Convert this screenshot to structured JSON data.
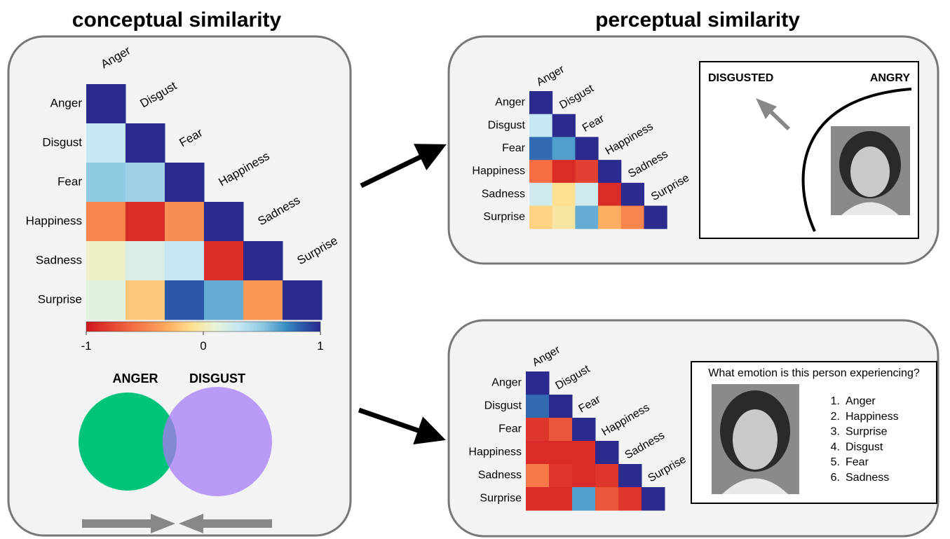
{
  "left_panel": {
    "title": "conceptual similarity",
    "matrix": {
      "labels": [
        "Anger",
        "Disgust",
        "Fear",
        "Happiness",
        "Sadness",
        "Surprise"
      ],
      "values": [
        [
          1
        ],
        [
          0.3,
          1
        ],
        [
          0.5,
          0.45,
          1
        ],
        [
          -0.5,
          -0.9,
          -0.45,
          1
        ],
        [
          0.05,
          0.2,
          0.3,
          -0.9,
          1
        ],
        [
          0.15,
          -0.2,
          0.85,
          0.6,
          -0.4,
          1
        ]
      ]
    },
    "colorbar": {
      "lim": [
        -1,
        1
      ],
      "ticks": [
        -1,
        0,
        1
      ]
    },
    "venn": {
      "labels": [
        "ANGER",
        "DISGUST"
      ]
    }
  },
  "right_title": "perceptual similarity",
  "top_panel": {
    "matrix": {
      "labels": [
        "Anger",
        "Disgust",
        "Fear",
        "Happiness",
        "Sadness",
        "Surprise"
      ],
      "values": [
        [
          1
        ],
        [
          0.3,
          1
        ],
        [
          0.8,
          0.65,
          1
        ],
        [
          -0.6,
          -0.9,
          -0.8,
          1
        ],
        [
          0.25,
          -0.1,
          0.25,
          -0.9,
          1
        ],
        [
          -0.15,
          -0.05,
          0.6,
          -0.3,
          -0.5,
          1
        ]
      ]
    },
    "inset": {
      "left_label": "DISGUSTED",
      "right_label": "ANGRY"
    }
  },
  "bottom_panel": {
    "matrix": {
      "labels": [
        "Anger",
        "Disgust",
        "Fear",
        "Happiness",
        "Sadness",
        "Surprise"
      ],
      "values": [
        [
          1
        ],
        [
          0.8,
          1
        ],
        [
          -0.85,
          -0.7,
          1
        ],
        [
          -0.9,
          -0.9,
          -0.9,
          1
        ],
        [
          -0.55,
          -0.85,
          -0.9,
          -0.85,
          1
        ],
        [
          -0.9,
          -0.9,
          0.65,
          -0.7,
          -0.85,
          1
        ]
      ]
    },
    "inset": {
      "question": "What emotion is this person experiencing?",
      "options": [
        {
          "number": "1.",
          "label": "Anger"
        },
        {
          "number": "2.",
          "label": "Happiness"
        },
        {
          "number": "3.",
          "label": "Surprise"
        },
        {
          "number": "4.",
          "label": "Disgust"
        },
        {
          "number": "5.",
          "label": "Fear"
        },
        {
          "number": "6.",
          "label": "Sadness"
        }
      ]
    }
  }
}
